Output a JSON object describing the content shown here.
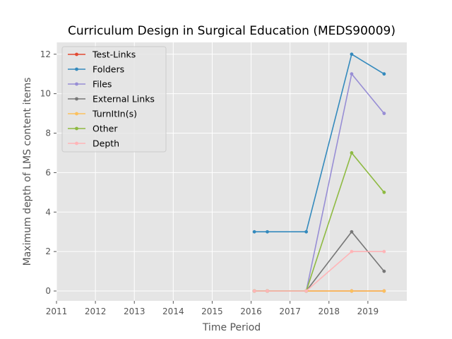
{
  "chart_data": {
    "type": "line",
    "title": "Curriculum Design in Surgical Education (MEDS90009)",
    "xlabel": "Time Period",
    "ylabel": "Maximum depth of LMS content items",
    "xlim": [
      "2011-01-01",
      "2020-01-01"
    ],
    "ylim": [
      -0.5,
      12.6
    ],
    "x_ticks": [
      "2011",
      "2012",
      "2013",
      "2014",
      "2015",
      "2016",
      "2017",
      "2018",
      "2019"
    ],
    "y_ticks": [
      0,
      2,
      4,
      6,
      8,
      10,
      12
    ],
    "x": [
      "2016-02",
      "2016-06",
      "2017-06",
      "2018-08",
      "2019-06"
    ],
    "series": [
      {
        "name": "Test-Links",
        "color": "#e24a33",
        "values": [
          0,
          0,
          0,
          0,
          0
        ]
      },
      {
        "name": "Folders",
        "color": "#348abd",
        "values": [
          3,
          3,
          3,
          12,
          11
        ]
      },
      {
        "name": "Files",
        "color": "#988ed5",
        "values": [
          0,
          0,
          0,
          11,
          9
        ]
      },
      {
        "name": "External Links",
        "color": "#777777",
        "values": [
          0,
          0,
          0,
          3,
          1
        ]
      },
      {
        "name": "TurnItIn(s)",
        "color": "#fbc15e",
        "values": [
          0,
          0,
          0,
          0,
          0
        ]
      },
      {
        "name": "Other",
        "color": "#8eba42",
        "values": [
          0,
          0,
          0,
          7,
          5
        ]
      },
      {
        "name": "Depth",
        "color": "#ffb5b8",
        "values": [
          0,
          0,
          0,
          2,
          2
        ]
      }
    ],
    "grid": true,
    "legend_position": "upper-left",
    "background": "#e5e5e5"
  }
}
